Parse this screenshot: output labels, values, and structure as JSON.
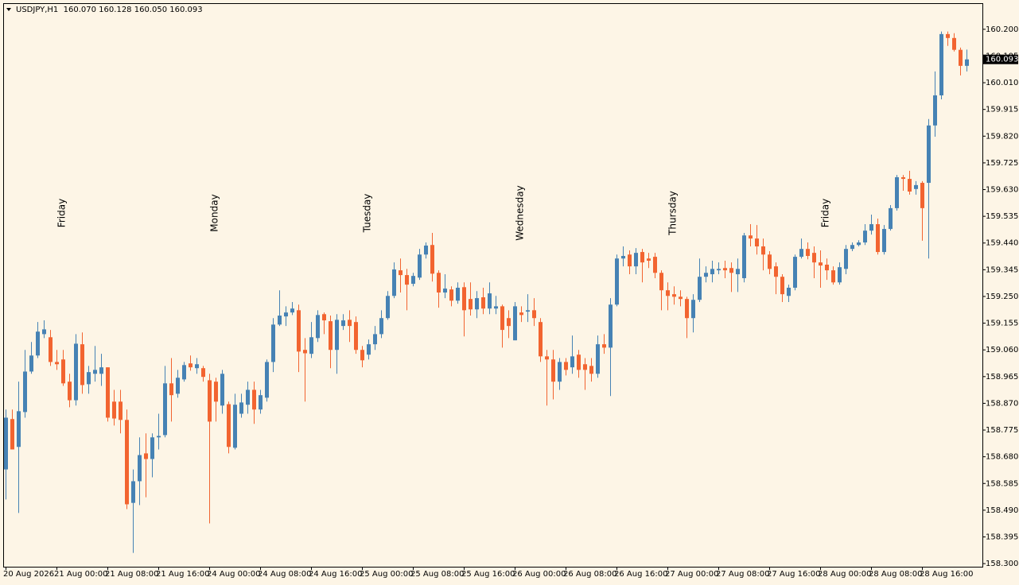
{
  "chart_data": {
    "type": "candlestick",
    "title": "USDJPY,H1  160.070 160.128 160.050 160.093",
    "last_price": 160.093,
    "up_color": "#4682b4",
    "down_color": "#f26430",
    "ylim": [
      158.289,
      160.29
    ],
    "yticks": [
      {
        "value": 160.2,
        "label": "160.200"
      },
      160.105,
      {
        "value": 160.01,
        "label": "160.010"
      },
      159.915,
      {
        "value": 159.82,
        "label": "159.820"
      },
      159.725,
      {
        "value": 159.63,
        "label": "159.630"
      },
      159.535,
      {
        "value": 159.44,
        "label": "159.440"
      },
      159.345,
      {
        "value": 159.25,
        "label": "159.250"
      },
      159.155,
      {
        "value": 159.06,
        "label": "159.060"
      },
      158.965,
      {
        "value": 158.87,
        "label": "158.870"
      },
      158.775,
      {
        "value": 158.68,
        "label": "158.680"
      },
      158.585,
      {
        "value": 158.49,
        "label": "158.490"
      },
      158.395,
      {
        "value": 158.3,
        "label": "158.300"
      }
    ],
    "xticks": [
      {
        "value": 0,
        "label": "20 Aug 2026"
      },
      {
        "value": 8,
        "label": "21 Aug 00:00"
      },
      {
        "value": 16,
        "label": "21 Aug 08:00"
      },
      {
        "value": 24,
        "label": "21 Aug 16:00"
      },
      {
        "value": 32,
        "label": "24 Aug 00:00"
      },
      {
        "value": 40,
        "label": "24 Aug 08:00"
      },
      {
        "value": 48,
        "label": "24 Aug 16:00"
      },
      {
        "value": 56,
        "label": "25 Aug 00:00"
      },
      {
        "value": 64,
        "label": "25 Aug 08:00"
      },
      {
        "value": 72,
        "label": "25 Aug 16:00"
      },
      {
        "value": 80,
        "label": "26 Aug 00:00"
      },
      {
        "value": 88,
        "label": "26 Aug 08:00"
      },
      {
        "value": 96,
        "label": "26 Aug 16:00"
      },
      {
        "value": 104,
        "label": "27 Aug 00:00"
      },
      {
        "value": 112,
        "label": "27 Aug 08:00"
      },
      {
        "value": 120,
        "label": "27 Aug 16:00"
      },
      {
        "value": 128,
        "label": "28 Aug 00:00"
      },
      {
        "value": 136,
        "label": "28 Aug 08:00"
      },
      {
        "value": 144,
        "label": "28 Aug 16:00"
      }
    ],
    "annotations": [
      {
        "text": "Friday",
        "x": 8,
        "color": "#00e000"
      },
      {
        "text": "Monday",
        "x": 32,
        "color": "#e6c800"
      },
      {
        "text": "Tuesday",
        "x": 56,
        "color": "#c8001e"
      },
      {
        "text": "Wednesday",
        "x": 80,
        "color": "#20d8e8"
      },
      {
        "text": "Thursday",
        "x": 104,
        "color": "#e8a020"
      },
      {
        "text": "Friday",
        "x": 128,
        "color": "#00e000"
      }
    ],
    "open": [
      158.635,
      158.814,
      158.715,
      158.839,
      158.983,
      159.04,
      159.116,
      159.105,
      159.017,
      159.026,
      158.947,
      158.881,
      159.08,
      158.938,
      158.975,
      158.975,
      158.998,
      158.876,
      158.876,
      158.811,
      158.516,
      158.593,
      158.692,
      158.672,
      158.749,
      158.757,
      158.941,
      158.904,
      158.955,
      159.012,
      158.995,
      158.995,
      158.952,
      158.947,
      158.862,
      158.867,
      158.712,
      158.833,
      158.865,
      158.918,
      158.848,
      158.89,
      159.017,
      159.15,
      159.179,
      159.193,
      159.201,
      159.06,
      159.046,
      159.102,
      159.187,
      159.162,
      159.06,
      159.145,
      159.167,
      159.159,
      159.06,
      159.043,
      159.08,
      159.116,
      159.173,
      159.252,
      159.343,
      159.326,
      159.295,
      159.317,
      159.399,
      159.433,
      159.334,
      159.264,
      159.275,
      159.235,
      159.283,
      159.241,
      159.204,
      159.247,
      159.207,
      159.207,
      159.215,
      159.173,
      159.094,
      159.193,
      159.196,
      159.201,
      159.159,
      159.037,
      159.026,
      158.947,
      159.017,
      158.998,
      159.043,
      159.009,
      159.003,
      158.975,
      159.08,
      159.068,
      159.221,
      159.385,
      159.399,
      159.357,
      159.408,
      159.385,
      159.391,
      159.334,
      159.272,
      159.258,
      159.249,
      159.241,
      159.173,
      159.238,
      159.32,
      159.329,
      159.343,
      159.351,
      159.351,
      159.329,
      159.315,
      159.467,
      159.456,
      159.428,
      159.399,
      159.357,
      159.32,
      159.252,
      159.281,
      159.391,
      159.419,
      159.405,
      159.371,
      159.363,
      159.343,
      159.3,
      159.348,
      159.419,
      159.433,
      159.442,
      159.484,
      159.507,
      159.408,
      159.49,
      159.564,
      159.674,
      159.668,
      159.632,
      159.654,
      159.654,
      159.858,
      159.965,
      160.183,
      160.169,
      160.127,
      160.07
    ],
    "high": [
      158.848,
      158.848,
      158.947,
      159.06,
      159.088,
      159.159,
      159.165,
      159.131,
      159.06,
      159.06,
      158.975,
      159.116,
      159.122,
      159.003,
      159.074,
      159.046,
      158.998,
      158.918,
      158.918,
      158.848,
      158.635,
      158.749,
      158.763,
      158.763,
      158.833,
      159.003,
      159.031,
      158.989,
      159.017,
      159.04,
      159.031,
      159.003,
      158.975,
      158.961,
      158.989,
      158.876,
      158.904,
      158.904,
      158.947,
      158.947,
      158.918,
      159.026,
      159.173,
      159.272,
      159.215,
      159.23,
      159.221,
      159.102,
      159.159,
      159.201,
      159.193,
      159.182,
      159.187,
      159.187,
      159.201,
      159.179,
      159.074,
      159.097,
      159.145,
      159.201,
      159.269,
      159.371,
      159.385,
      159.348,
      159.334,
      159.419,
      159.442,
      159.476,
      159.343,
      159.329,
      159.286,
      159.3,
      159.3,
      159.3,
      159.269,
      159.281,
      159.3,
      159.252,
      159.221,
      159.201,
      159.23,
      159.215,
      159.258,
      159.244,
      159.173,
      159.06,
      159.06,
      159.031,
      159.031,
      159.111,
      159.06,
      159.031,
      159.031,
      159.111,
      159.116,
      159.244,
      159.399,
      159.428,
      159.414,
      159.422,
      159.419,
      159.405,
      159.405,
      159.343,
      159.3,
      159.286,
      159.272,
      159.249,
      159.258,
      159.385,
      159.357,
      159.377,
      159.371,
      159.377,
      159.371,
      159.385,
      159.476,
      159.507,
      159.504,
      159.456,
      159.411,
      159.371,
      159.329,
      159.292,
      159.399,
      159.456,
      159.442,
      159.428,
      159.414,
      159.385,
      159.357,
      159.371,
      159.433,
      159.442,
      159.45,
      159.507,
      159.541,
      159.527,
      159.504,
      159.575,
      159.682,
      159.682,
      159.697,
      159.66,
      159.66,
      159.881,
      160.05,
      160.192,
      160.192,
      160.186,
      160.135,
      160.128
    ],
    "low": [
      158.528,
      158.706,
      158.48,
      158.819,
      158.975,
      159.031,
      159.102,
      159.003,
      158.989,
      158.932,
      158.856,
      158.862,
      158.904,
      158.904,
      158.947,
      158.932,
      158.805,
      158.791,
      158.763,
      158.494,
      158.338,
      158.508,
      158.536,
      158.607,
      158.706,
      158.749,
      158.805,
      158.89,
      158.947,
      158.986,
      158.975,
      158.947,
      158.443,
      158.805,
      158.833,
      158.692,
      158.706,
      158.819,
      158.833,
      158.797,
      158.833,
      158.876,
      158.981,
      159.145,
      159.145,
      159.184,
      158.981,
      158.876,
      159.031,
      159.088,
      159.116,
      158.995,
      158.975,
      159.131,
      159.088,
      159.046,
      158.998,
      159.026,
      159.06,
      159.102,
      159.167,
      159.244,
      159.264,
      159.201,
      159.286,
      159.309,
      159.385,
      159.303,
      159.21,
      159.244,
      159.215,
      159.224,
      159.108,
      159.182,
      159.173,
      159.187,
      159.187,
      159.187,
      159.068,
      159.102,
      159.094,
      159.159,
      159.159,
      159.145,
      159.017,
      158.862,
      158.884,
      158.918,
      158.969,
      158.975,
      158.961,
      158.918,
      158.947,
      158.961,
      159.046,
      158.896,
      159.215,
      159.357,
      159.329,
      159.329,
      159.3,
      159.351,
      159.315,
      159.201,
      159.201,
      159.221,
      159.215,
      159.102,
      159.122,
      159.23,
      159.3,
      159.3,
      159.329,
      159.315,
      159.266,
      159.266,
      159.3,
      159.428,
      159.399,
      159.343,
      159.329,
      159.258,
      159.23,
      159.23,
      159.272,
      159.385,
      159.382,
      159.315,
      159.281,
      159.309,
      159.292,
      159.292,
      159.329,
      159.411,
      159.428,
      159.433,
      159.47,
      159.399,
      159.399,
      159.484,
      159.555,
      159.626,
      159.612,
      159.612,
      159.448,
      159.385,
      159.818,
      159.951,
      160.141,
      160.121,
      160.036,
      160.05
    ],
    "close": [
      158.819,
      158.706,
      158.842,
      158.983,
      159.04,
      159.125,
      159.133,
      159.017,
      159.009,
      158.941,
      158.881,
      159.082,
      158.935,
      158.981,
      158.989,
      158.998,
      158.819,
      158.816,
      158.811,
      158.511,
      158.593,
      158.686,
      158.672,
      158.749,
      158.754,
      158.941,
      158.899,
      158.961,
      159.006,
      158.998,
      159.009,
      158.964,
      158.805,
      158.876,
      158.975,
      158.715,
      158.865,
      158.873,
      158.918,
      158.848,
      158.899,
      159.017,
      159.15,
      159.182,
      159.193,
      159.207,
      159.054,
      159.048,
      159.105,
      159.184,
      159.165,
      159.06,
      159.167,
      159.165,
      159.145,
      159.06,
      159.023,
      159.08,
      159.116,
      159.173,
      159.252,
      159.346,
      159.326,
      159.292,
      159.323,
      159.399,
      159.431,
      159.331,
      159.264,
      159.278,
      159.235,
      159.281,
      159.201,
      159.204,
      159.244,
      159.207,
      159.261,
      159.215,
      159.131,
      159.145,
      159.215,
      159.184,
      159.201,
      159.173,
      159.037,
      159.026,
      158.947,
      159.017,
      158.989,
      159.037,
      158.989,
      158.989,
      158.975,
      159.08,
      159.068,
      159.221,
      159.385,
      159.394,
      159.357,
      159.405,
      159.371,
      159.377,
      159.334,
      159.272,
      159.252,
      159.249,
      159.241,
      159.173,
      159.238,
      159.32,
      159.334,
      159.348,
      159.348,
      159.343,
      159.334,
      159.348,
      159.467,
      159.456,
      159.428,
      159.399,
      159.348,
      159.32,
      159.258,
      159.281,
      159.391,
      159.419,
      159.394,
      159.371,
      159.36,
      159.343,
      159.3,
      159.354,
      159.419,
      159.433,
      159.442,
      159.484,
      159.507,
      159.408,
      159.49,
      159.564,
      159.674,
      159.668,
      159.623,
      159.646,
      159.564,
      159.858,
      159.965,
      160.183,
      160.169,
      160.127,
      160.07,
      160.093
    ]
  }
}
